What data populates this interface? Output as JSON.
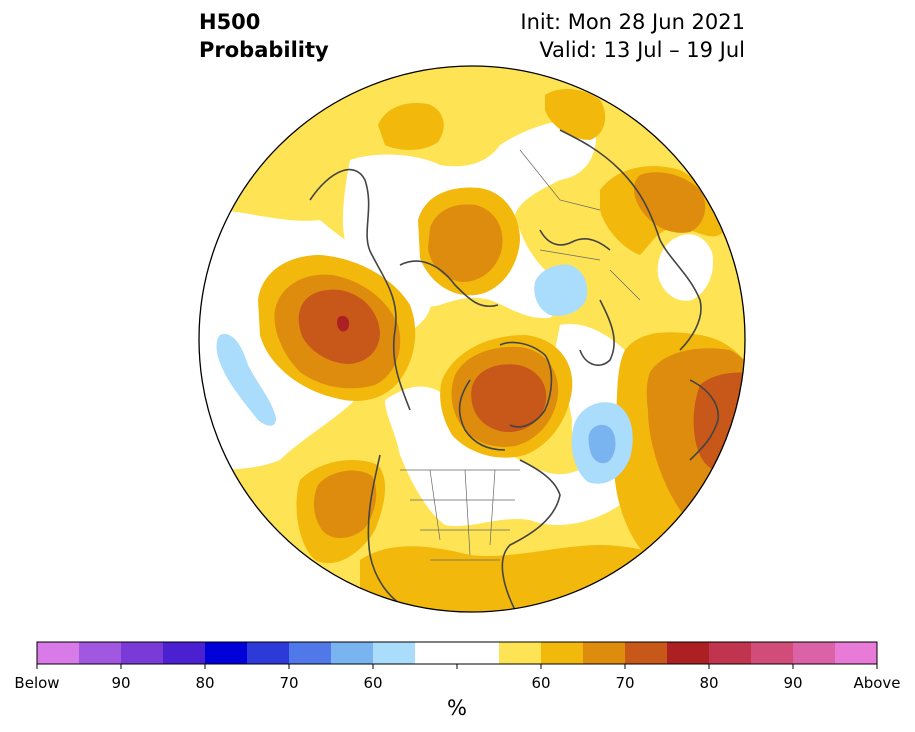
{
  "title": {
    "variable": "H500",
    "product": "Probability",
    "init": "Init: Mon 28 Jun 2021",
    "valid": "Valid: 13 Jul – 19 Jul"
  },
  "colorbar": {
    "units": "%",
    "below_colors": [
      "#d87ae8",
      "#a257e0",
      "#7a3ad8",
      "#4a20d0",
      "#0000d8",
      "#2c3ad8",
      "#5078e8",
      "#7ab4f0",
      "#aadcfc"
    ],
    "neutral_color": "#ffffff",
    "above_colors": [
      "#fee354",
      "#f2b80c",
      "#de8c0e",
      "#c8571a",
      "#ac2024",
      "#c03450",
      "#d24c7a",
      "#dc62a8",
      "#e87ad8"
    ],
    "labels": [
      "Below",
      "90",
      "80",
      "70",
      "60",
      "60",
      "70",
      "80",
      "90",
      "Above"
    ]
  },
  "map": {
    "projection": "north polar stereographic",
    "background_color": "#ffffff",
    "coastline_color": "#444444"
  }
}
